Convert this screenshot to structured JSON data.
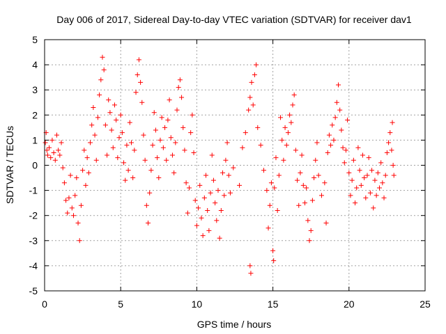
{
  "chart_data": {
    "type": "scatter",
    "title": "Day 006 of 2017, Sidereal Day-to-day VTEC variation (SDTVAR) for receiver dav1",
    "xlabel": "GPS time / hours",
    "ylabel": "SDTVAR / TECUs",
    "xlim": [
      0,
      25
    ],
    "ylim": [
      -5,
      5
    ],
    "xticks": [
      "0",
      "5",
      "10",
      "15",
      "20",
      "25"
    ],
    "yticks": [
      "-5",
      "-4",
      "-3",
      "-2",
      "-1",
      "0",
      "1",
      "2",
      "3",
      "4",
      "5"
    ],
    "grid": true,
    "marker": "+",
    "series": [
      {
        "name": "SDTVAR",
        "color": "#ff0000",
        "points": [
          [
            0.05,
            0.9
          ],
          [
            0.1,
            1.3
          ],
          [
            0.15,
            0.6
          ],
          [
            0.2,
            0.4
          ],
          [
            0.3,
            0.7
          ],
          [
            0.4,
            0.3
          ],
          [
            0.5,
            1.0
          ],
          [
            0.6,
            0.5
          ],
          [
            0.7,
            0.2
          ],
          [
            0.8,
            1.2
          ],
          [
            0.9,
            0.6
          ],
          [
            1.0,
            0.4
          ],
          [
            1.1,
            0.9
          ],
          [
            1.2,
            -0.1
          ],
          [
            1.3,
            -0.7
          ],
          [
            1.4,
            -1.4
          ],
          [
            1.5,
            -1.9
          ],
          [
            1.6,
            -1.3
          ],
          [
            1.7,
            -0.4
          ],
          [
            1.8,
            -1.7
          ],
          [
            1.9,
            -2.0
          ],
          [
            2.0,
            -1.2
          ],
          [
            2.1,
            -0.5
          ],
          [
            2.2,
            -2.3
          ],
          [
            2.3,
            -3.0
          ],
          [
            2.4,
            -1.6
          ],
          [
            2.5,
            -0.2
          ],
          [
            2.6,
            0.6
          ],
          [
            2.7,
            -0.8
          ],
          [
            2.8,
            0.3
          ],
          [
            2.9,
            -0.3
          ],
          [
            3.0,
            0.9
          ],
          [
            3.1,
            1.6
          ],
          [
            3.2,
            2.3
          ],
          [
            3.3,
            1.2
          ],
          [
            3.4,
            0.2
          ],
          [
            3.5,
            1.9
          ],
          [
            3.6,
            2.8
          ],
          [
            3.7,
            3.4
          ],
          [
            3.8,
            4.3
          ],
          [
            3.9,
            3.8
          ],
          [
            4.0,
            1.6
          ],
          [
            4.1,
            0.4
          ],
          [
            4.2,
            2.6
          ],
          [
            4.3,
            2.1
          ],
          [
            4.4,
            1.4
          ],
          [
            4.5,
            0.7
          ],
          [
            4.6,
            2.4
          ],
          [
            4.7,
            1.8
          ],
          [
            4.8,
            0.3
          ],
          [
            4.9,
            1.1
          ],
          [
            5.0,
            2.0
          ],
          [
            5.1,
            1.3
          ],
          [
            5.2,
            0.1
          ],
          [
            5.3,
            -0.6
          ],
          [
            5.4,
            0.8
          ],
          [
            5.5,
            -0.2
          ],
          [
            5.6,
            1.7
          ],
          [
            5.7,
            0.9
          ],
          [
            5.8,
            -0.5
          ],
          [
            5.9,
            0.6
          ],
          [
            6.0,
            2.9
          ],
          [
            6.1,
            3.6
          ],
          [
            6.2,
            4.2
          ],
          [
            6.3,
            3.3
          ],
          [
            6.4,
            2.5
          ],
          [
            6.5,
            1.2
          ],
          [
            6.6,
            0.2
          ],
          [
            6.7,
            -1.6
          ],
          [
            6.8,
            -2.3
          ],
          [
            6.9,
            -1.1
          ],
          [
            7.0,
            -0.2
          ],
          [
            7.1,
            0.8
          ],
          [
            7.2,
            2.1
          ],
          [
            7.3,
            1.4
          ],
          [
            7.4,
            0.3
          ],
          [
            7.5,
            -0.5
          ],
          [
            7.6,
            1.0
          ],
          [
            7.7,
            1.9
          ],
          [
            7.8,
            0.7
          ],
          [
            7.9,
            1.5
          ],
          [
            8.0,
            0.2
          ],
          [
            8.1,
            1.8
          ],
          [
            8.2,
            2.6
          ],
          [
            8.3,
            1.1
          ],
          [
            8.4,
            0.4
          ],
          [
            8.5,
            -0.3
          ],
          [
            8.6,
            0.9
          ],
          [
            8.7,
            2.2
          ],
          [
            8.8,
            3.1
          ],
          [
            8.9,
            3.4
          ],
          [
            9.0,
            2.7
          ],
          [
            9.1,
            1.5
          ],
          [
            9.2,
            0.6
          ],
          [
            9.3,
            -0.7
          ],
          [
            9.4,
            -1.9
          ],
          [
            9.5,
            -0.9
          ],
          [
            9.6,
            1.3
          ],
          [
            9.7,
            2.0
          ],
          [
            9.8,
            0.5
          ],
          [
            9.9,
            -1.4
          ],
          [
            10.0,
            -2.4
          ],
          [
            10.1,
            -1.7
          ],
          [
            10.2,
            -0.8
          ],
          [
            10.3,
            -2.1
          ],
          [
            10.4,
            -2.8
          ],
          [
            10.5,
            -1.3
          ],
          [
            10.6,
            -0.4
          ],
          [
            10.7,
            -1.8
          ],
          [
            10.8,
            -2.6
          ],
          [
            10.9,
            -1.1
          ],
          [
            11.0,
            0.4
          ],
          [
            11.1,
            -0.6
          ],
          [
            11.2,
            -1.5
          ],
          [
            11.3,
            -2.2
          ],
          [
            11.4,
            -1.0
          ],
          [
            11.5,
            -2.9
          ],
          [
            11.6,
            -1.8
          ],
          [
            11.7,
            -0.3
          ],
          [
            11.8,
            -1.2
          ],
          [
            11.9,
            0.2
          ],
          [
            12.0,
            0.9
          ],
          [
            12.1,
            -0.4
          ],
          [
            12.2,
            -1.1
          ],
          [
            12.4,
            -0.1
          ],
          [
            12.8,
            -0.8
          ],
          [
            13.0,
            0.7
          ],
          [
            13.2,
            1.3
          ],
          [
            13.4,
            2.2
          ],
          [
            13.5,
            2.7
          ],
          [
            13.6,
            3.3
          ],
          [
            13.7,
            2.4
          ],
          [
            13.8,
            3.6
          ],
          [
            13.9,
            4.0
          ],
          [
            13.5,
            -4.0
          ],
          [
            13.55,
            -4.3
          ],
          [
            14.0,
            1.5
          ],
          [
            14.2,
            0.8
          ],
          [
            14.4,
            -0.2
          ],
          [
            14.6,
            -1.0
          ],
          [
            14.7,
            -2.5
          ],
          [
            14.8,
            -1.6
          ],
          [
            14.9,
            -0.7
          ],
          [
            15.0,
            -3.4
          ],
          [
            15.05,
            -3.8
          ],
          [
            15.1,
            -0.9
          ],
          [
            15.2,
            0.3
          ],
          [
            15.3,
            -1.8
          ],
          [
            15.4,
            -0.4
          ],
          [
            15.5,
            1.9
          ],
          [
            15.6,
            1.0
          ],
          [
            15.7,
            0.2
          ],
          [
            15.8,
            1.5
          ],
          [
            15.9,
            0.8
          ],
          [
            16.0,
            1.3
          ],
          [
            16.1,
            2.0
          ],
          [
            16.2,
            1.7
          ],
          [
            16.3,
            2.4
          ],
          [
            16.4,
            2.8
          ],
          [
            16.5,
            0.6
          ],
          [
            16.6,
            -0.6
          ],
          [
            16.7,
            -1.6
          ],
          [
            16.8,
            -0.3
          ],
          [
            16.9,
            0.4
          ],
          [
            17.0,
            -0.8
          ],
          [
            17.1,
            -1.5
          ],
          [
            17.2,
            -0.9
          ],
          [
            17.3,
            -2.2
          ],
          [
            17.4,
            -3.0
          ],
          [
            17.5,
            -2.6
          ],
          [
            17.6,
            -1.4
          ],
          [
            17.7,
            -0.5
          ],
          [
            17.8,
            0.2
          ],
          [
            17.9,
            0.9
          ],
          [
            18.0,
            -0.4
          ],
          [
            18.2,
            -1.2
          ],
          [
            18.4,
            -0.7
          ],
          [
            18.5,
            -2.3
          ],
          [
            18.6,
            0.5
          ],
          [
            18.7,
            1.2
          ],
          [
            18.8,
            0.8
          ],
          [
            18.9,
            1.6
          ],
          [
            19.0,
            1.0
          ],
          [
            19.1,
            1.9
          ],
          [
            19.2,
            2.5
          ],
          [
            19.3,
            3.2
          ],
          [
            19.4,
            2.2
          ],
          [
            19.5,
            1.4
          ],
          [
            19.6,
            0.7
          ],
          [
            19.7,
            0.1
          ],
          [
            19.8,
            0.6
          ],
          [
            19.9,
            1.8
          ],
          [
            20.0,
            -0.3
          ],
          [
            20.1,
            -1.2
          ],
          [
            20.2,
            -0.6
          ],
          [
            20.3,
            0.2
          ],
          [
            20.4,
            -1.5
          ],
          [
            20.5,
            -0.9
          ],
          [
            20.6,
            0.7
          ],
          [
            20.7,
            -0.2
          ],
          [
            20.8,
            -0.8
          ],
          [
            20.9,
            0.4
          ],
          [
            21.0,
            -0.5
          ],
          [
            21.1,
            -1.3
          ],
          [
            21.2,
            -0.4
          ],
          [
            21.3,
            0.3
          ],
          [
            21.4,
            -1.1
          ],
          [
            21.5,
            -0.2
          ],
          [
            21.6,
            -1.7
          ],
          [
            21.7,
            -0.6
          ],
          [
            21.8,
            -1.2
          ],
          [
            21.9,
            -0.3
          ],
          [
            22.0,
            -0.9
          ],
          [
            22.1,
            0.1
          ],
          [
            22.2,
            -0.7
          ],
          [
            22.3,
            -1.3
          ],
          [
            22.4,
            -0.4
          ],
          [
            22.5,
            0.5
          ],
          [
            22.6,
            0.9
          ],
          [
            22.7,
            1.3
          ],
          [
            22.8,
            0.6
          ],
          [
            22.85,
            1.7
          ],
          [
            22.9,
            0.0
          ],
          [
            22.95,
            -0.4
          ]
        ]
      }
    ]
  }
}
